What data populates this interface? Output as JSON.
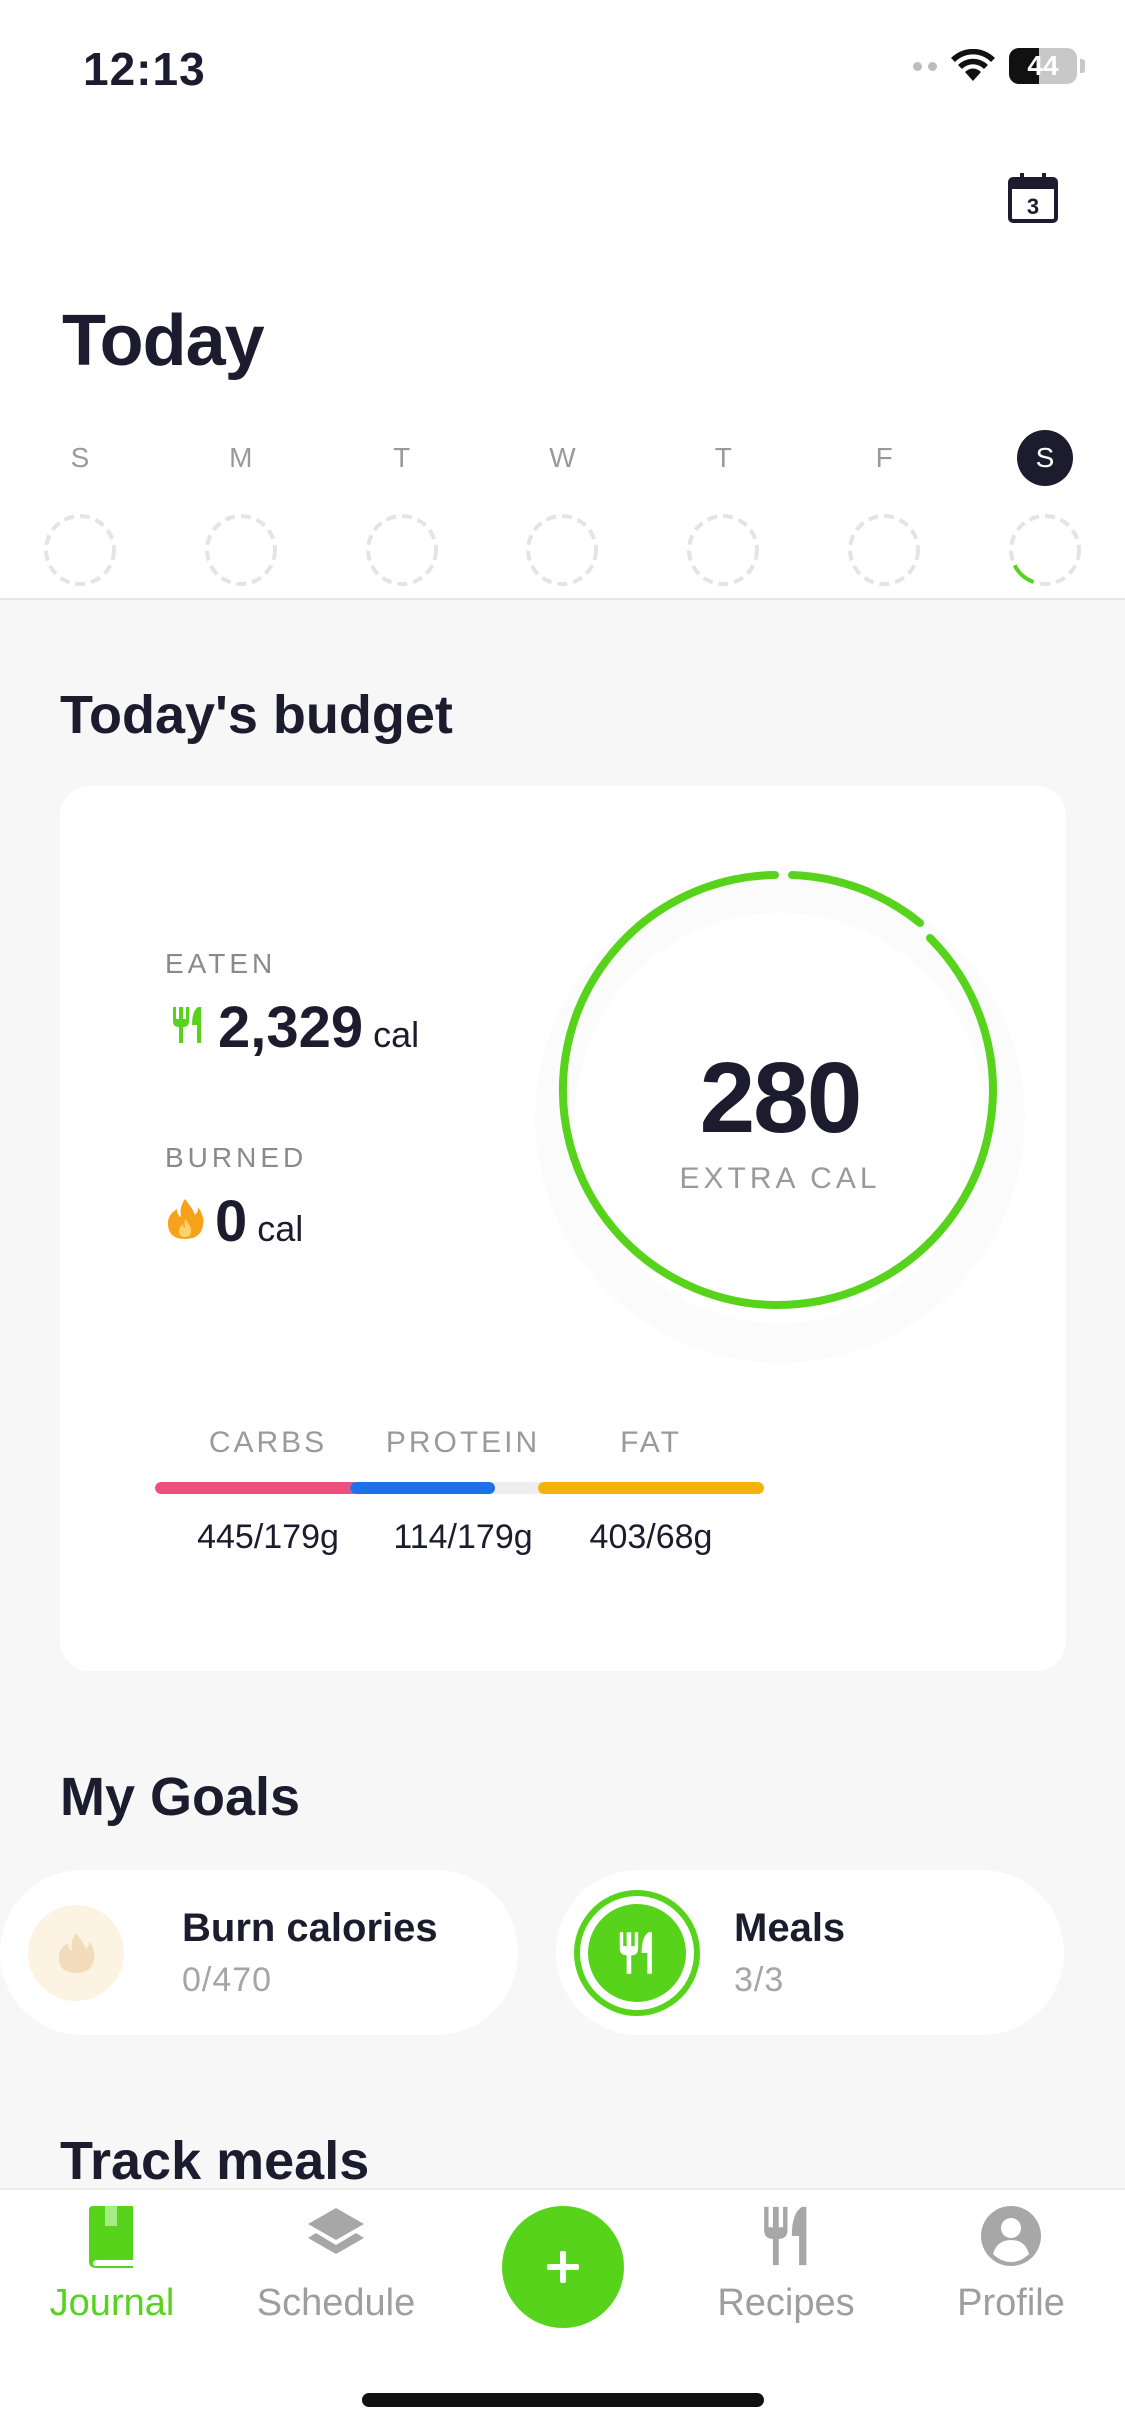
{
  "status_bar": {
    "time": "12:13",
    "battery": "44",
    "battery_level": 0.44
  },
  "header": {
    "title": "Today",
    "calendar_day": "3"
  },
  "week": [
    {
      "letter": "S",
      "active": false,
      "progress": 0
    },
    {
      "letter": "M",
      "active": false,
      "progress": 0
    },
    {
      "letter": "T",
      "active": false,
      "progress": 0
    },
    {
      "letter": "W",
      "active": false,
      "progress": 0
    },
    {
      "letter": "T",
      "active": false,
      "progress": 0
    },
    {
      "letter": "F",
      "active": false,
      "progress": 0
    },
    {
      "letter": "S",
      "active": true,
      "progress": 0.12
    }
  ],
  "budget": {
    "title": "Today's budget",
    "eaten_label": "EATEN",
    "eaten_value": "2,329",
    "eaten_unit": "cal",
    "burned_label": "BURNED",
    "burned_value": "0",
    "burned_unit": "cal",
    "ring_value": "280",
    "ring_label": "EXTRA CAL",
    "macros": [
      {
        "name": "CARBS",
        "value": "445/179g",
        "fraction": 1.0,
        "color": "#ee4f7c"
      },
      {
        "name": "PROTEIN",
        "value": "114/179g",
        "fraction": 0.64,
        "color": "#1f6fe8"
      },
      {
        "name": "FAT",
        "value": "403/68g",
        "fraction": 1.0,
        "color": "#f5b20a"
      }
    ]
  },
  "goals": {
    "title": "My Goals",
    "items": [
      {
        "title": "Burn calories",
        "sub": "0/470"
      },
      {
        "title": "Meals",
        "sub": "3/3"
      }
    ]
  },
  "track_meals": {
    "title": "Track meals"
  },
  "tabbar": {
    "journal": "Journal",
    "schedule": "Schedule",
    "recipes": "Recipes",
    "profile": "Profile"
  },
  "colors": {
    "accent": "#57d31b",
    "text": "#1c1c2e"
  }
}
